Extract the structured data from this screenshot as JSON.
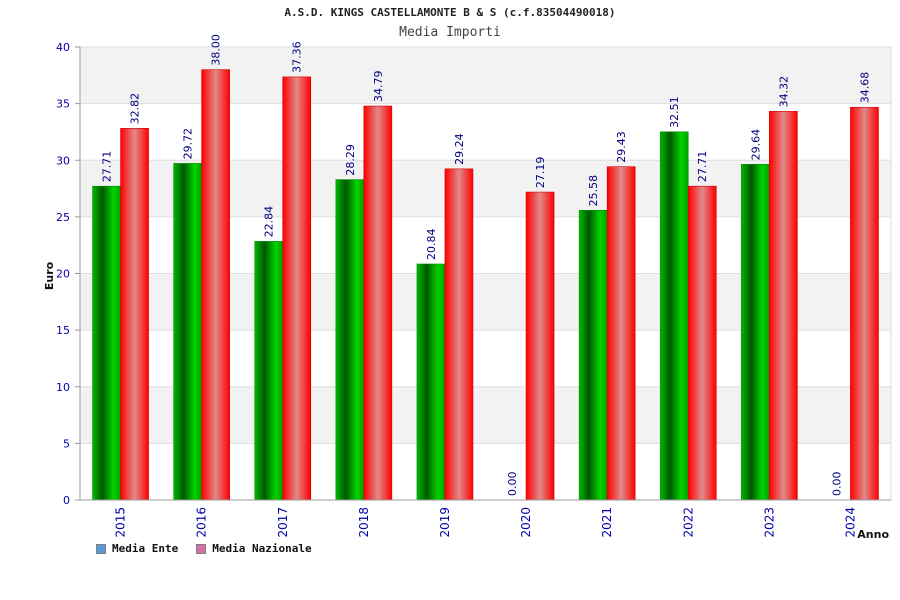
{
  "chart_data": {
    "type": "bar",
    "title": "A.S.D. KINGS CASTELLAMONTE B & S (c.f.83504490018)",
    "subtitle": "Media Importi",
    "xlabel": "Anno",
    "ylabel": "Euro",
    "ylim": [
      0,
      40
    ],
    "yticks": [
      0,
      5,
      10,
      15,
      20,
      25,
      30,
      35,
      40
    ],
    "categories": [
      "2015",
      "2016",
      "2017",
      "2018",
      "2019",
      "2020",
      "2021",
      "2022",
      "2023",
      "2024"
    ],
    "series": [
      {
        "name": "Media Ente",
        "values": [
          27.71,
          29.72,
          22.84,
          28.29,
          20.84,
          0.0,
          25.58,
          32.51,
          29.64,
          0.0
        ],
        "labels": [
          "27.71",
          "29.72",
          "22.84",
          "28.29",
          "20.84",
          "0.00",
          "25.58",
          "32.51",
          "29.64",
          "0.00"
        ]
      },
      {
        "name": "Media Nazionale",
        "values": [
          32.82,
          38.0,
          37.36,
          34.79,
          29.24,
          27.19,
          29.43,
          27.71,
          34.32,
          34.68
        ],
        "labels": [
          "32.82",
          "38.00",
          "37.36",
          "34.79",
          "29.24",
          "27.19",
          "29.43",
          "27.71",
          "34.32",
          "34.68"
        ]
      }
    ],
    "legend_placement": "bottom-left",
    "grid": true,
    "colors": {
      "ente_bar": "#00c000",
      "nazionale_bar": "#ff0000",
      "ente_swatch": "#5b9bd5",
      "nazionale_swatch": "#d86fa8",
      "value_label": "#000080",
      "tick_label": "#0000aa",
      "band": "#f2f2f2"
    }
  }
}
